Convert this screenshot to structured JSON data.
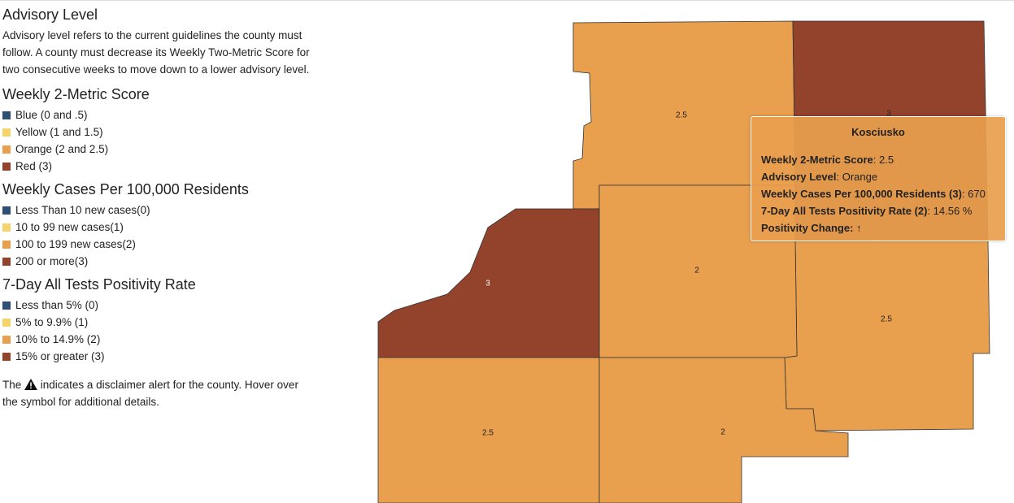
{
  "advisory": {
    "title": "Advisory Level",
    "description": "Advisory level refers to the current guidelines the county must follow. A county must decrease its Weekly Two-Metric Score for two consecutive weeks to move down to a lower advisory level."
  },
  "legends": [
    {
      "title": "Weekly 2-Metric Score",
      "items": [
        {
          "label": "Blue (0 and .5)",
          "color": "#2e5077"
        },
        {
          "label": "Yellow (1 and 1.5)",
          "color": "#f6d36d"
        },
        {
          "label": "Orange (2 and 2.5)",
          "color": "#e89f4e"
        },
        {
          "label": "Red (3)",
          "color": "#93432b"
        }
      ]
    },
    {
      "title": "Weekly Cases Per 100,000 Residents",
      "items": [
        {
          "label": "Less Than 10 new cases(0)",
          "color": "#2e5077"
        },
        {
          "label": "10 to 99 new cases(1)",
          "color": "#f6d36d"
        },
        {
          "label": "100 to 199 new cases(2)",
          "color": "#e89f4e"
        },
        {
          "label": "200 or more(3)",
          "color": "#93432b"
        }
      ]
    },
    {
      "title": "7-Day All Tests Positivity Rate",
      "items": [
        {
          "label": "Less than 5% (0)",
          "color": "#2e5077"
        },
        {
          "label": "5% to 9.9% (1)",
          "color": "#f6d36d"
        },
        {
          "label": "10% to 14.9% (2)",
          "color": "#e89f4e"
        },
        {
          "label": "15% or greater (3)",
          "color": "#93432b"
        }
      ]
    }
  ],
  "disclaimer": {
    "before": "The",
    "after": "indicates a disclaimer alert for the county. Hover over the symbol for additional details."
  },
  "map": {
    "regions": [
      {
        "label": "2.5",
        "color": "#e89f4e"
      },
      {
        "label": "3",
        "color": "#93432b"
      },
      {
        "label": "2.5",
        "color": "#e89f4e"
      },
      {
        "label": "2",
        "color": "#e89f4e"
      },
      {
        "label": "3",
        "color": "#93432b"
      },
      {
        "label": "2.5",
        "color": "#e89f4e"
      },
      {
        "label": "2",
        "color": "#e89f4e"
      }
    ]
  },
  "tooltip": {
    "title": "Kosciusko",
    "rows": [
      {
        "key": "Weekly 2-Metric Score",
        "value": ": 2.5"
      },
      {
        "key": "Advisory Level",
        "value": ": Orange"
      },
      {
        "key": "Weekly Cases Per 100,000 Residents (3)",
        "value": ": 670"
      },
      {
        "key": "7-Day All Tests Positivity Rate (2)",
        "value": ": 14.56 %"
      },
      {
        "key": "Positivity Change: ↑",
        "value": ""
      }
    ]
  }
}
